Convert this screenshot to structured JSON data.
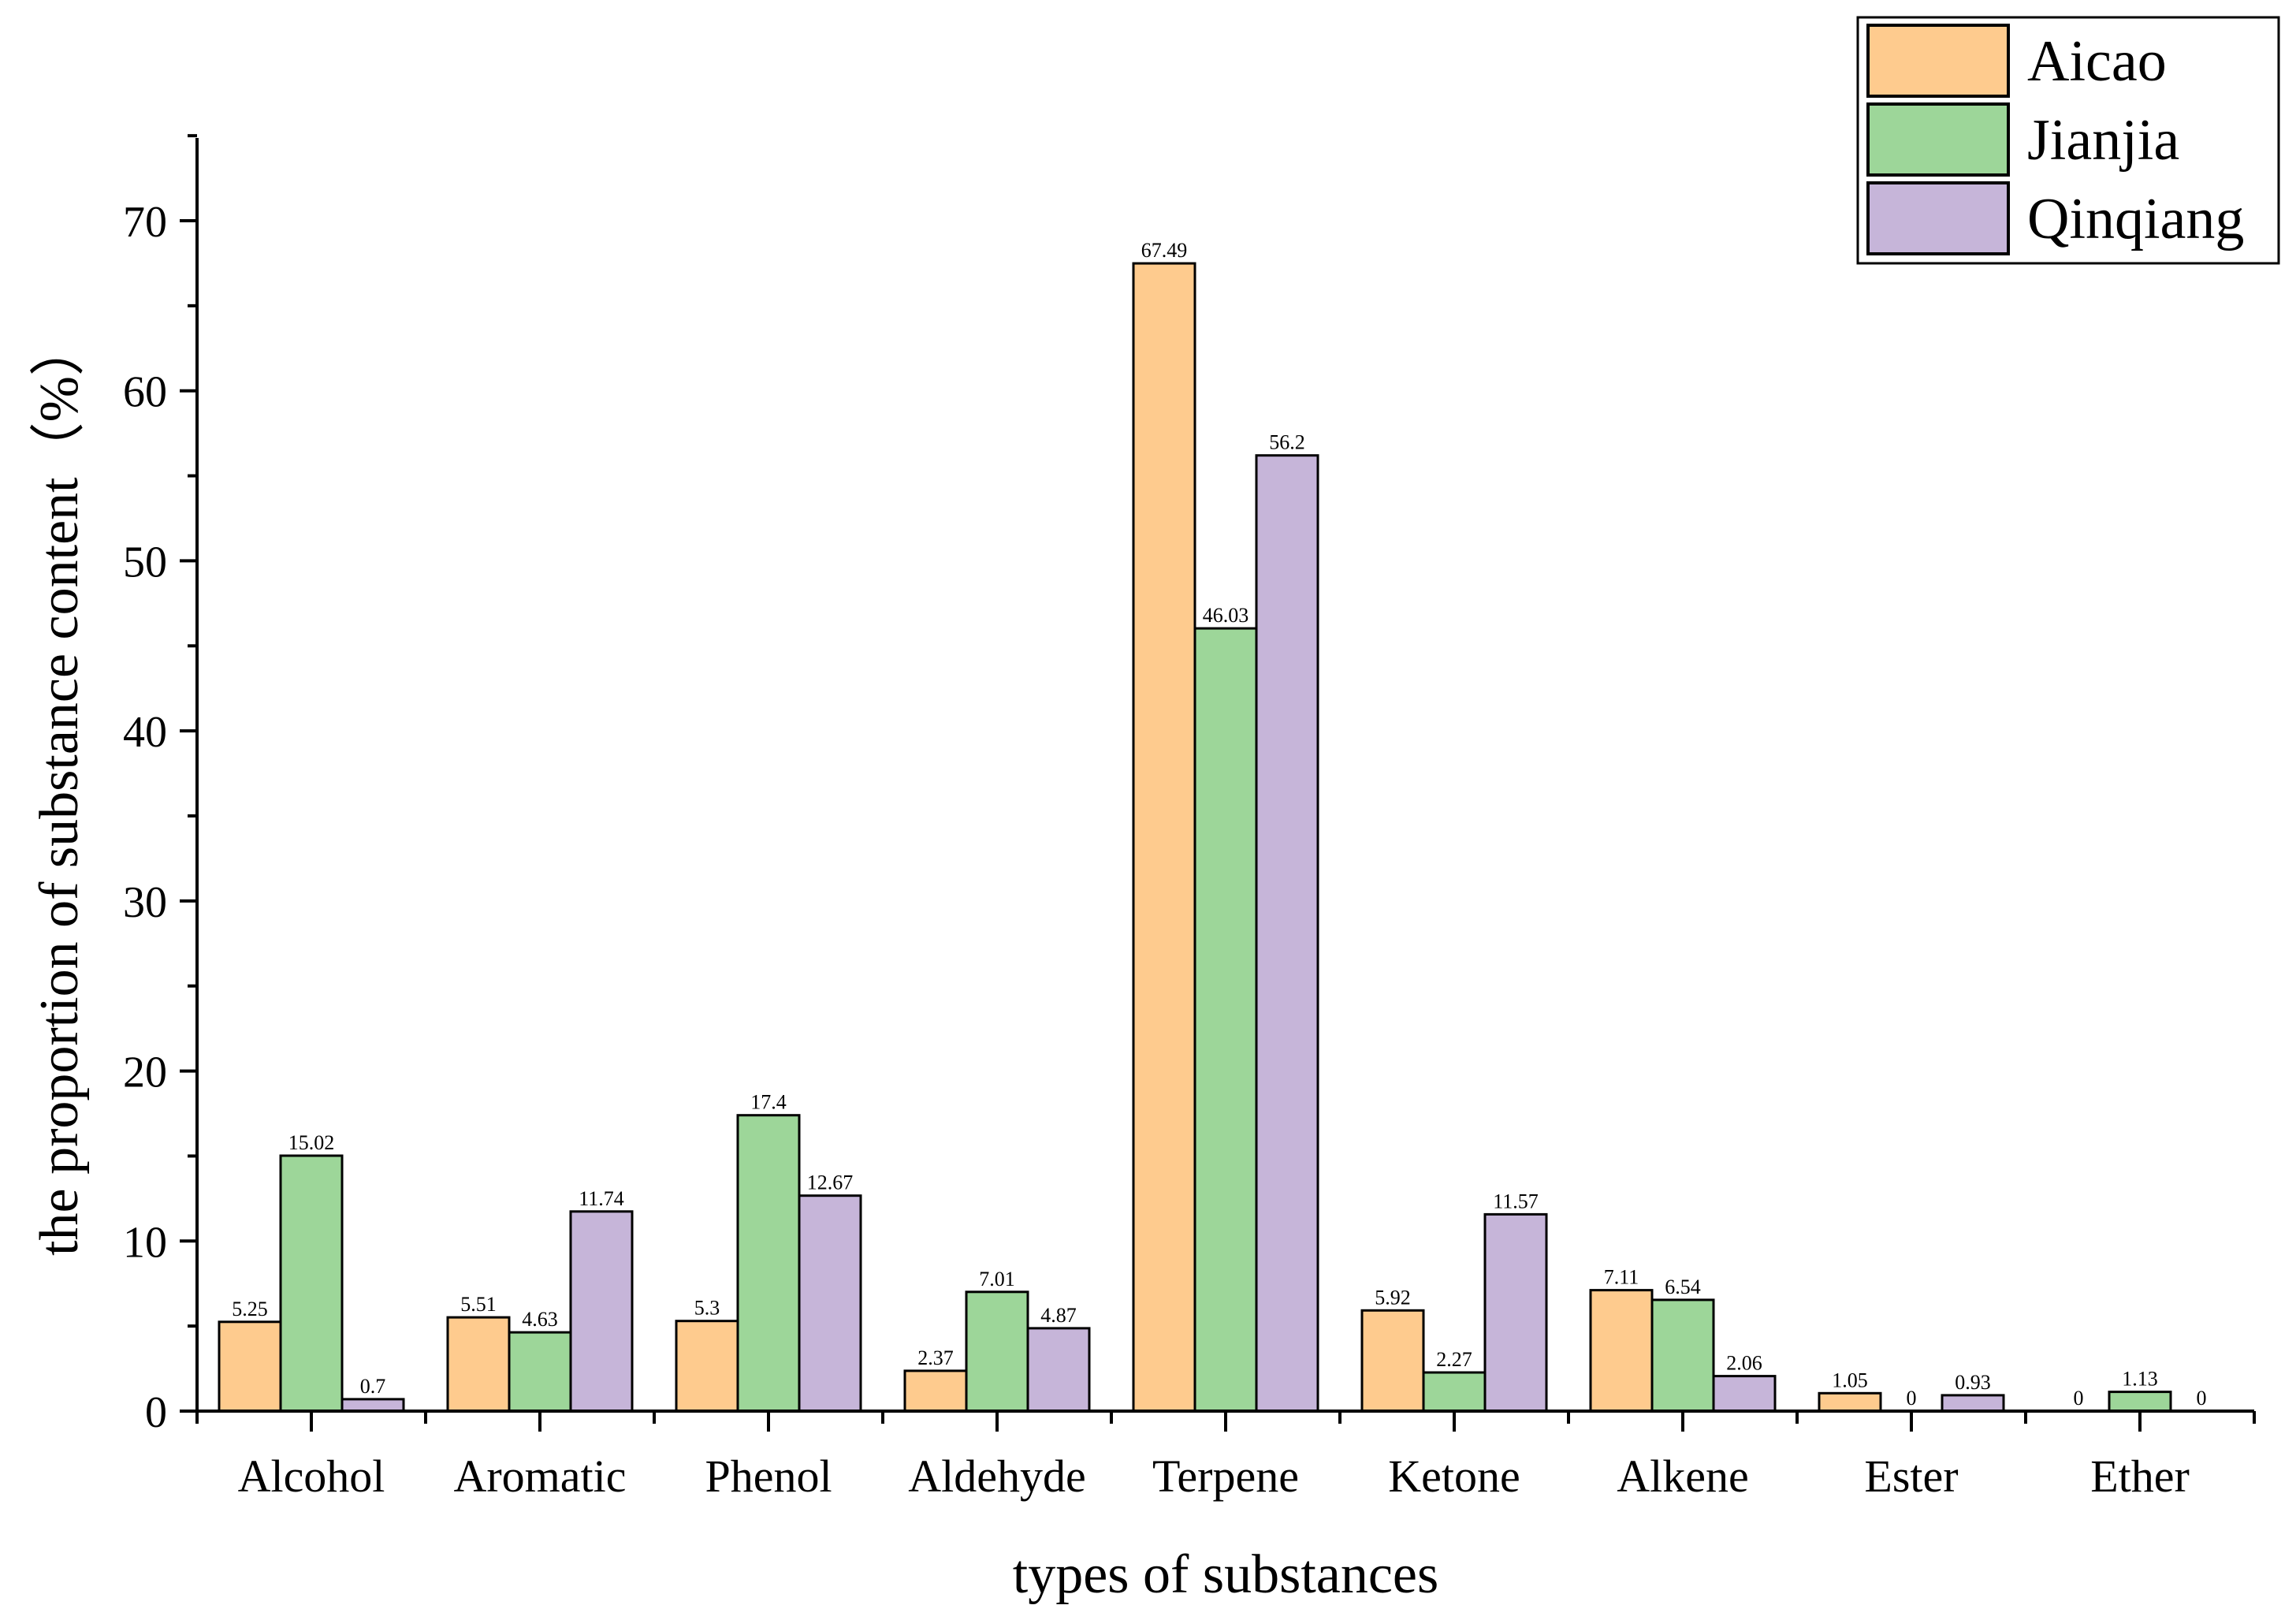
{
  "chart_data": {
    "type": "bar",
    "title": "",
    "xlabel": "types of substances",
    "ylabel": "the proportion of substance content（%）",
    "ylim": [
      0,
      75
    ],
    "yticks": [
      0,
      10,
      20,
      30,
      40,
      50,
      60,
      70
    ],
    "categories": [
      "Alcohol",
      "Aromatic",
      "Phenol",
      "Aldehyde",
      "Terpene",
      "Ketone",
      "Alkene",
      "Ester",
      "Ether"
    ],
    "series": [
      {
        "name": "Aicao",
        "color": "#FECB8E",
        "values": [
          5.25,
          5.51,
          5.3,
          2.37,
          67.49,
          5.92,
          7.11,
          1.05,
          0
        ]
      },
      {
        "name": "Jianjia",
        "color": "#9DD699",
        "values": [
          15.02,
          4.63,
          17.4,
          7.01,
          46.03,
          2.27,
          6.54,
          0,
          1.13
        ]
      },
      {
        "name": "Qinqiang",
        "color": "#C6B5D9",
        "values": [
          0.7,
          11.74,
          12.67,
          4.87,
          56.2,
          11.57,
          2.06,
          0.93,
          0
        ]
      }
    ],
    "legend_position": "top-right",
    "grid": false
  }
}
